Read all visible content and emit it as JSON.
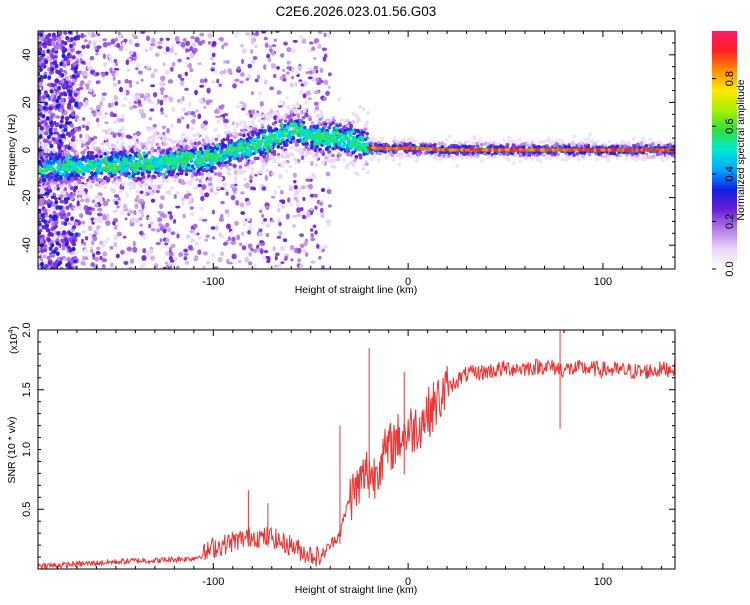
{
  "title": "C2E6.2026.023.01.56.G03",
  "chart_data": [
    {
      "type": "heatmap",
      "name": "frequency-spectrogram",
      "xlabel": "Height of straight line (km)",
      "ylabel": "Frequency (Hz)",
      "xlim": [
        -190,
        137
      ],
      "ylim": [
        -50,
        50
      ],
      "x_ticks": [
        -100,
        0,
        100
      ],
      "x_tick_labels": [
        "-100",
        "0",
        "100"
      ],
      "y_ticks": [
        -40,
        -20,
        0,
        20,
        40
      ],
      "y_tick_labels": [
        "-40",
        "-20",
        "0",
        "20",
        "40"
      ],
      "colorbar": {
        "label": "Normalized spectral amplitude",
        "range": [
          0,
          1
        ],
        "ticks": [
          0.0,
          0.2,
          0.4,
          0.6,
          0.8
        ],
        "tick_labels": [
          "0.0",
          "0.2",
          "0.4",
          "0.6",
          "0.8"
        ],
        "colors": [
          "#ffffff",
          "#e8d6f7",
          "#b57ae6",
          "#6a1fd6",
          "#1020e0",
          "#00a8ff",
          "#00e8d0",
          "#30e040",
          "#a8f000",
          "#ffe800",
          "#ff9000",
          "#ff2020",
          "#ff1a6a"
        ]
      },
      "ridge_trend": {
        "x": [
          -190,
          -160,
          -140,
          -120,
          -100,
          -80,
          -65,
          -58,
          -50,
          -40,
          -30,
          -20,
          -10,
          0,
          20,
          60,
          100,
          137
        ],
        "frequency": [
          -8,
          -7,
          -6,
          -5,
          -3,
          2,
          6,
          9,
          6,
          5,
          4,
          1,
          0.5,
          0.8,
          0,
          0,
          0,
          0
        ]
      }
    },
    {
      "type": "line",
      "name": "snr-profile",
      "xlabel": "Height of straight line (km)",
      "ylabel": "SNR (10 * v/v)",
      "multiplier_label": "(x10",
      "multiplier_exponent": "4",
      "multiplier_close": ")",
      "xlim": [
        -190,
        137
      ],
      "ylim": [
        0,
        2.0
      ],
      "x_ticks": [
        -100,
        0,
        100
      ],
      "x_tick_labels": [
        "-100",
        "0",
        "100"
      ],
      "y_ticks": [
        0.5,
        1.0,
        1.5,
        2.0
      ],
      "y_tick_labels": [
        "0.5",
        "1.0",
        "1.5",
        "2.0"
      ],
      "series": [
        {
          "name": "SNR",
          "color": "#ee3333",
          "x": [
            -190,
            -180,
            -170,
            -160,
            -150,
            -140,
            -130,
            -120,
            -110,
            -105,
            -100,
            -95,
            -90,
            -85,
            -80,
            -75,
            -70,
            -65,
            -60,
            -55,
            -50,
            -45,
            -40,
            -35,
            -30,
            -25,
            -22,
            -20,
            -18,
            -15,
            -10,
            -5,
            0,
            5,
            10,
            15,
            20,
            25,
            30,
            40,
            50,
            60,
            70,
            80,
            90,
            100,
            110,
            120,
            130,
            137
          ],
          "y": [
            0.03,
            0.03,
            0.04,
            0.05,
            0.06,
            0.07,
            0.07,
            0.08,
            0.09,
            0.12,
            0.18,
            0.2,
            0.23,
            0.25,
            0.28,
            0.26,
            0.27,
            0.22,
            0.2,
            0.15,
            0.12,
            0.1,
            0.2,
            0.3,
            0.6,
            0.7,
            0.8,
            0.85,
            0.75,
            0.9,
            1.0,
            1.1,
            1.15,
            1.2,
            1.3,
            1.4,
            1.5,
            1.58,
            1.63,
            1.65,
            1.68,
            1.68,
            1.7,
            1.67,
            1.68,
            1.67,
            1.66,
            1.65,
            1.67,
            1.68
          ],
          "spikes": [
            {
              "x": -82,
              "y": 0.66
            },
            {
              "x": -72,
              "y": 0.55
            },
            {
              "x": -35,
              "y": 1.2
            },
            {
              "x": -20,
              "y": 1.85
            },
            {
              "x": -2,
              "y": 1.65
            },
            {
              "x": 78,
              "y": 2.0
            }
          ]
        }
      ]
    }
  ]
}
